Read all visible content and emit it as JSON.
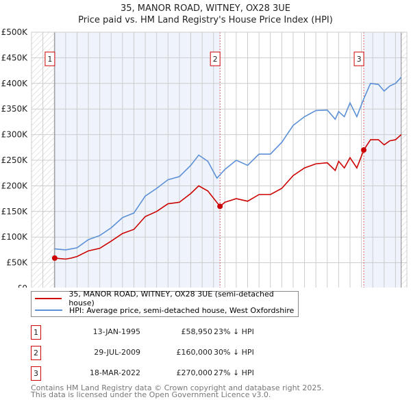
{
  "chart_data": {
    "type": "line",
    "title": "35, MANOR ROAD, WITNEY, OX28 3UE",
    "subtitle": "Price paid vs. HM Land Registry's House Price Index (HPI)",
    "xlim": [
      1993,
      2026
    ],
    "ylim": [
      0,
      500000
    ],
    "y_ticks": [
      "£0",
      "£50K",
      "£100K",
      "£150K",
      "£200K",
      "£250K",
      "£300K",
      "£350K",
      "£400K",
      "£450K",
      "£500K"
    ],
    "x_ticks": [
      "1993",
      "1994",
      "1995",
      "1996",
      "1997",
      "1998",
      "1999",
      "2000",
      "2001",
      "2002",
      "2003",
      "2004",
      "2005",
      "2006",
      "2007",
      "2008",
      "2009",
      "2010",
      "2011",
      "2012",
      "2013",
      "2014",
      "2015",
      "2016",
      "2017",
      "2018",
      "2019",
      "2020",
      "2021",
      "2022",
      "2023",
      "2024",
      "2025",
      "2026"
    ],
    "grid": true,
    "series": [
      {
        "name": "35, MANOR ROAD, WITNEY, OX28 3UE (semi-detached house)",
        "color": "#cc0000",
        "x": [
          1995.04,
          1996,
          1996.5,
          1997,
          1998,
          1999,
          2000,
          2001,
          2002,
          2003,
          2004,
          2005,
          2006,
          2007,
          2007.7,
          2008.5,
          2009.57,
          2010,
          2011,
          2012,
          2013,
          2014,
          2015,
          2016,
          2017,
          2018,
          2019,
          2019.7,
          2020,
          2020.5,
          2021,
          2021.6,
          2022.21,
          2022.8,
          2023.5,
          2024,
          2024.5,
          2025,
          2025.5
        ],
        "y": [
          58950,
          57000,
          59000,
          62000,
          73000,
          78000,
          92000,
          107000,
          115000,
          140000,
          150000,
          165000,
          168000,
          185000,
          200000,
          190000,
          160000,
          168000,
          175000,
          170000,
          183000,
          183000,
          195000,
          220000,
          235000,
          243000,
          245000,
          230000,
          248000,
          235000,
          255000,
          235000,
          270000,
          290000,
          290000,
          280000,
          288000,
          290000,
          300000
        ]
      },
      {
        "name": "HPI: Average price, semi-detached house, West Oxfordshire",
        "color": "#5b8fd6",
        "x": [
          1995.04,
          1996,
          1996.5,
          1997,
          1998,
          1999,
          2000,
          2001,
          2002,
          2003,
          2004,
          2005,
          2006,
          2007,
          2007.7,
          2008.5,
          2009.3,
          2010,
          2011,
          2012,
          2013,
          2014,
          2015,
          2016,
          2017,
          2018,
          2019,
          2019.7,
          2020,
          2020.5,
          2021,
          2021.6,
          2022.21,
          2022.8,
          2023.5,
          2024,
          2024.5,
          2025,
          2025.5
        ],
        "y": [
          77000,
          75000,
          77000,
          79000,
          95000,
          103000,
          118000,
          138000,
          147000,
          180000,
          195000,
          212000,
          218000,
          240000,
          260000,
          248000,
          215000,
          232000,
          250000,
          240000,
          262000,
          262000,
          285000,
          318000,
          335000,
          347000,
          348000,
          330000,
          345000,
          335000,
          362000,
          335000,
          370000,
          400000,
          398000,
          385000,
          395000,
          400000,
          412000
        ]
      }
    ],
    "sales": [
      {
        "label": "1",
        "x": 1995.04,
        "y": 58950
      },
      {
        "label": "2",
        "x": 2009.57,
        "y": 160000
      },
      {
        "label": "3",
        "x": 2022.21,
        "y": 270000
      }
    ]
  },
  "legend": {
    "property": "35, MANOR ROAD, WITNEY, OX28 3UE (semi-detached house)",
    "hpi": "HPI: Average price, semi-detached house, West Oxfordshire"
  },
  "table": [
    {
      "num": "1",
      "date": "13-JAN-1995",
      "price": "£58,950",
      "hpi": "23% ↓ HPI"
    },
    {
      "num": "2",
      "date": "29-JUL-2009",
      "price": "£160,000",
      "hpi": "30% ↓ HPI"
    },
    {
      "num": "3",
      "date": "18-MAR-2022",
      "price": "£270,000",
      "hpi": "27% ↓ HPI"
    }
  ],
  "footer": {
    "line1": "Contains HM Land Registry data © Crown copyright and database right 2025.",
    "line2": "This data is licensed under the Open Government Licence v3.0."
  }
}
